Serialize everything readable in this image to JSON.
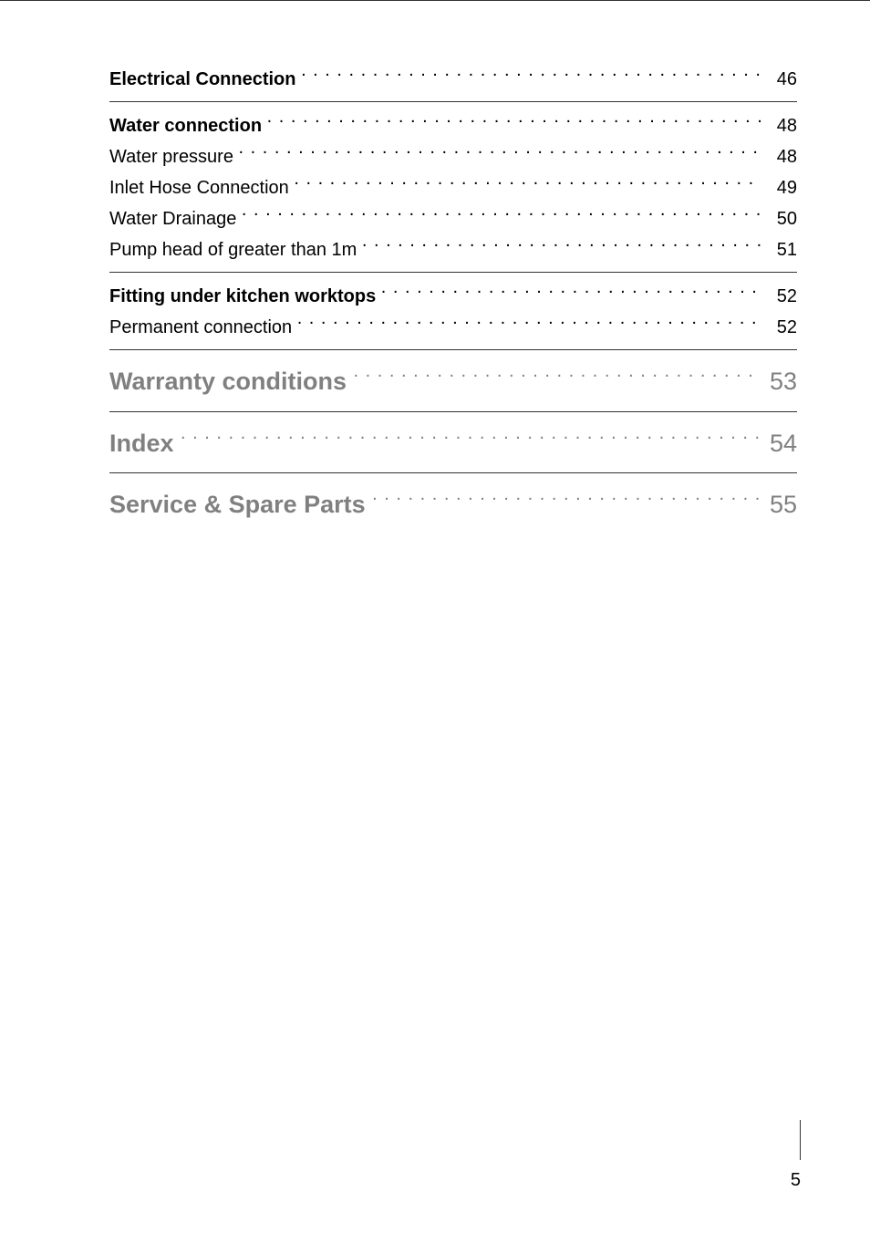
{
  "page_number": "5",
  "groups": [
    {
      "rule_after": true,
      "entries": [
        {
          "label": "Electrical Connection",
          "page": "46",
          "bold": true,
          "level": "small"
        }
      ]
    },
    {
      "rule_after": true,
      "entries": [
        {
          "label": "Water connection",
          "page": "48",
          "bold": true,
          "level": "small"
        },
        {
          "label": "Water pressure",
          "page": "48",
          "bold": false,
          "level": "small"
        },
        {
          "label": "Inlet Hose Connection",
          "page": "49",
          "bold": false,
          "level": "small"
        },
        {
          "label": "Water Drainage",
          "page": "50",
          "bold": false,
          "level": "small"
        },
        {
          "label": "Pump head of greater than 1m",
          "page": "51",
          "bold": false,
          "level": "small"
        }
      ]
    },
    {
      "rule_after": true,
      "entries": [
        {
          "label": "Fitting under kitchen worktops",
          "page": "52",
          "bold": true,
          "level": "small"
        },
        {
          "label": "Permanent connection",
          "page": "52",
          "bold": false,
          "level": "small"
        }
      ]
    },
    {
      "rule_after": true,
      "entries": [
        {
          "label": "Warranty conditions",
          "page": "53",
          "bold": true,
          "level": "large"
        }
      ]
    },
    {
      "rule_after": true,
      "entries": [
        {
          "label": "Index",
          "page": "54",
          "bold": true,
          "level": "large"
        }
      ]
    },
    {
      "rule_after": false,
      "entries": [
        {
          "label": "Service & Spare Parts",
          "page": "55",
          "bold": true,
          "level": "large"
        }
      ]
    }
  ]
}
